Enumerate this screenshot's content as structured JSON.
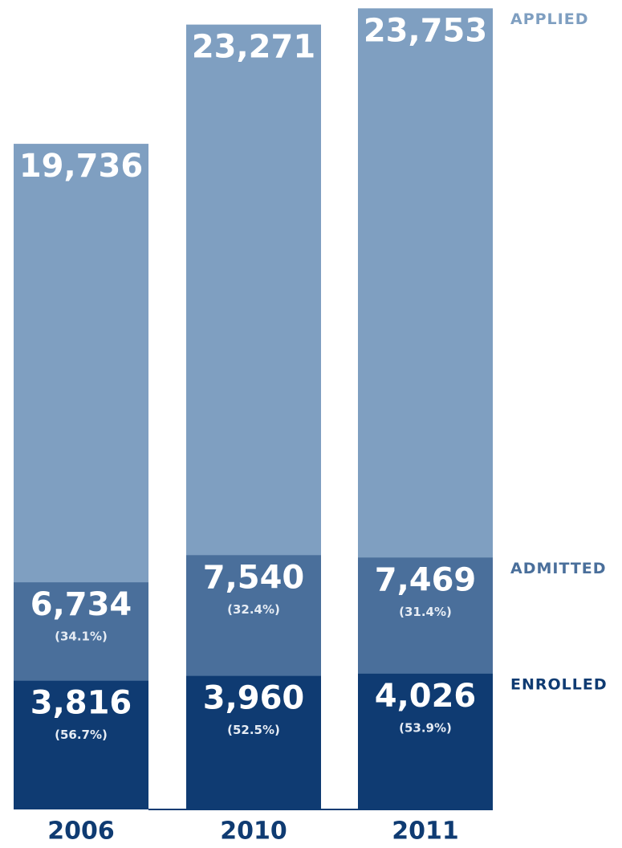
{
  "chart_data": {
    "type": "overlap_bar",
    "categories": [
      "2006",
      "2010",
      "2011"
    ],
    "series": [
      {
        "name": "APPLIED",
        "color": "#7f9fc1",
        "values": [
          19736,
          23271,
          23753
        ],
        "value_labels": [
          "19,736",
          "23,271",
          "23,753"
        ]
      },
      {
        "name": "ADMITTED",
        "color": "#4a6f9b",
        "values": [
          6734,
          7540,
          7469
        ],
        "value_labels": [
          "6,734",
          "7,540",
          "7,469"
        ],
        "rate_labels": [
          "(34.1%)",
          "(32.4%)",
          "(31.4%)"
        ]
      },
      {
        "name": "ENROLLED",
        "color": "#0f3b72",
        "values": [
          3816,
          3960,
          4026
        ],
        "value_labels": [
          "3,816",
          "3,960",
          "4,026"
        ],
        "rate_labels": [
          "(56.7%)",
          "(52.5%)",
          "(53.9%)"
        ]
      }
    ],
    "ylim": [
      0,
      24000
    ]
  }
}
